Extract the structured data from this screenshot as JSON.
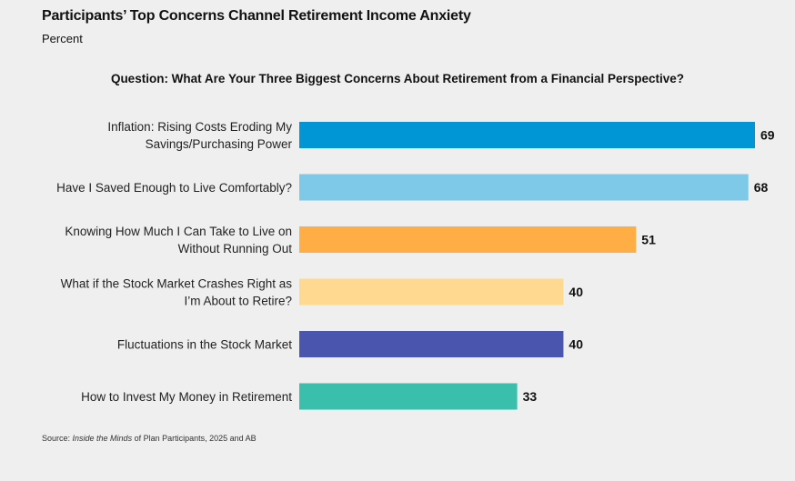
{
  "header": {
    "title": "Participants’ Top Concerns Channel Retirement Income Anxiety",
    "subtitle": "Percent",
    "question": "Question: What Are Your Three Biggest Concerns About Retirement from a Financial Perspective?"
  },
  "source": {
    "prefix": "Source: ",
    "italic": "Inside the Minds",
    "suffix": " of Plan Participants, 2025 and AB"
  },
  "chart_data": {
    "type": "bar",
    "orientation": "horizontal",
    "categories": [
      [
        "Inflation: Rising Costs Eroding My",
        "Savings/Purchasing Power"
      ],
      [
        "Have I Saved Enough to Live Comfortably?"
      ],
      [
        "Knowing How Much I Can Take to Live on",
        "Without Running Out"
      ],
      [
        "What if the Stock Market Crashes Right as",
        "I’m About to Retire?"
      ],
      [
        "Fluctuations in the Stock Market"
      ],
      [
        "How to Invest My Money in Retirement"
      ]
    ],
    "values": [
      69,
      68,
      51,
      40,
      40,
      33
    ],
    "colors": [
      "#0096d6",
      "#7ec8e8",
      "#ffad45",
      "#ffd990",
      "#4a56ad",
      "#3bbfad"
    ],
    "xlim": [
      0,
      69
    ],
    "title": "Participants’ Top Concerns Channel Retirement Income Anxiety",
    "ylabel": "",
    "xlabel": "",
    "grid": false,
    "legend": "none"
  }
}
